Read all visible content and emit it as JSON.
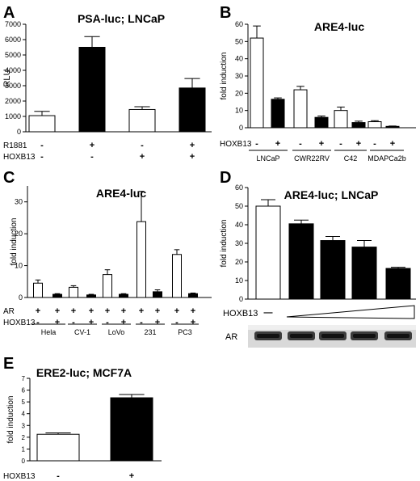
{
  "chart_data": [
    {
      "panel": "A",
      "type": "bar",
      "title": "PSA-luc; LNCaP",
      "ylabel": "RLU",
      "ylim": [
        0,
        7000
      ],
      "yticks": [
        0,
        1000,
        2000,
        3000,
        4000,
        5000,
        6000,
        7000
      ],
      "values": [
        1050,
        5500,
        1450,
        2850
      ],
      "errors": [
        280,
        700,
        180,
        620
      ],
      "fills": [
        "#ffffff",
        "#000000",
        "#ffffff",
        "#000000"
      ],
      "condition_rows": [
        {
          "label": "R1881",
          "marks": [
            "-",
            "+",
            "-",
            "+"
          ]
        },
        {
          "label": "HOXB13",
          "marks": [
            "-",
            "-",
            "+",
            "+"
          ]
        }
      ]
    },
    {
      "panel": "B",
      "type": "bar",
      "title": "ARE4-luc",
      "ylabel": "fold induction",
      "ylim": [
        0,
        60
      ],
      "yticks": [
        0,
        10,
        20,
        30,
        40,
        50,
        60
      ],
      "values": [
        52,
        16.5,
        22,
        6,
        10,
        3,
        3.5,
        0.8
      ],
      "errors": [
        7,
        0.8,
        2,
        0.8,
        2,
        0.8,
        0.6,
        0.2
      ],
      "fills": [
        "#ffffff",
        "#000000",
        "#ffffff",
        "#000000",
        "#ffffff",
        "#000000",
        "#ffffff",
        "#000000"
      ],
      "condition_rows": [
        {
          "label": "HOXB13",
          "marks": [
            "-",
            "+",
            "-",
            "+",
            "-",
            "+",
            "-",
            "+"
          ]
        }
      ],
      "groups": [
        "LNCaP",
        "CWR22RV",
        "C42",
        "MDAPCa2b"
      ]
    },
    {
      "panel": "C",
      "type": "bar",
      "title": "ARE4-luc",
      "ylabel": "fold induction",
      "ylim": [
        0,
        35
      ],
      "yticks": [
        0,
        10,
        20,
        30
      ],
      "values": [
        4.5,
        1,
        3.2,
        0.8,
        7.2,
        1,
        23.8,
        1.8,
        13.5,
        1.2
      ],
      "errors": [
        1,
        0.2,
        0.5,
        0.2,
        1.5,
        0.2,
        9.5,
        0.6,
        1.5,
        0.2
      ],
      "fills": [
        "#ffffff",
        "#000000",
        "#ffffff",
        "#000000",
        "#ffffff",
        "#000000",
        "#ffffff",
        "#000000",
        "#ffffff",
        "#000000"
      ],
      "condition_rows": [
        {
          "label": "AR",
          "marks": [
            "+",
            "+",
            "+",
            "+",
            "+",
            "+",
            "+",
            "+",
            "+",
            "+"
          ]
        },
        {
          "label": "HOXB13",
          "marks": [
            "-",
            "+",
            "-",
            "+",
            "-",
            "+",
            "-",
            "+",
            "-",
            "+"
          ]
        }
      ],
      "groups": [
        "Hela",
        "CV-1",
        "LoVo",
        "231",
        "PC3"
      ]
    },
    {
      "panel": "D",
      "type": "bar",
      "title": "ARE4-luc; LNCaP",
      "ylabel": "fold induction",
      "ylim": [
        0,
        60
      ],
      "yticks": [
        0,
        10,
        20,
        30,
        40,
        50,
        60
      ],
      "values": [
        50,
        40.5,
        31.5,
        28,
        16.5
      ],
      "errors": [
        3.5,
        2,
        2.2,
        3.5,
        0.6
      ],
      "fills": [
        "#ffffff",
        "#000000",
        "#000000",
        "#000000",
        "#000000"
      ],
      "hoxb13_label": "HOXB13",
      "hoxb13_minus": "—",
      "blot_label": "AR"
    },
    {
      "panel": "E",
      "type": "bar",
      "title": "ERE2-luc; MCF7A",
      "ylabel": "fold induction",
      "ylim": [
        0,
        7
      ],
      "yticks": [
        0,
        1,
        2,
        3,
        4,
        5,
        6,
        7
      ],
      "values": [
        2.25,
        5.35
      ],
      "errors": [
        0.12,
        0.28
      ],
      "fills": [
        "#ffffff",
        "#000000"
      ],
      "condition_rows": [
        {
          "label": "HOXB13",
          "marks": [
            "-",
            "+"
          ]
        }
      ]
    }
  ]
}
